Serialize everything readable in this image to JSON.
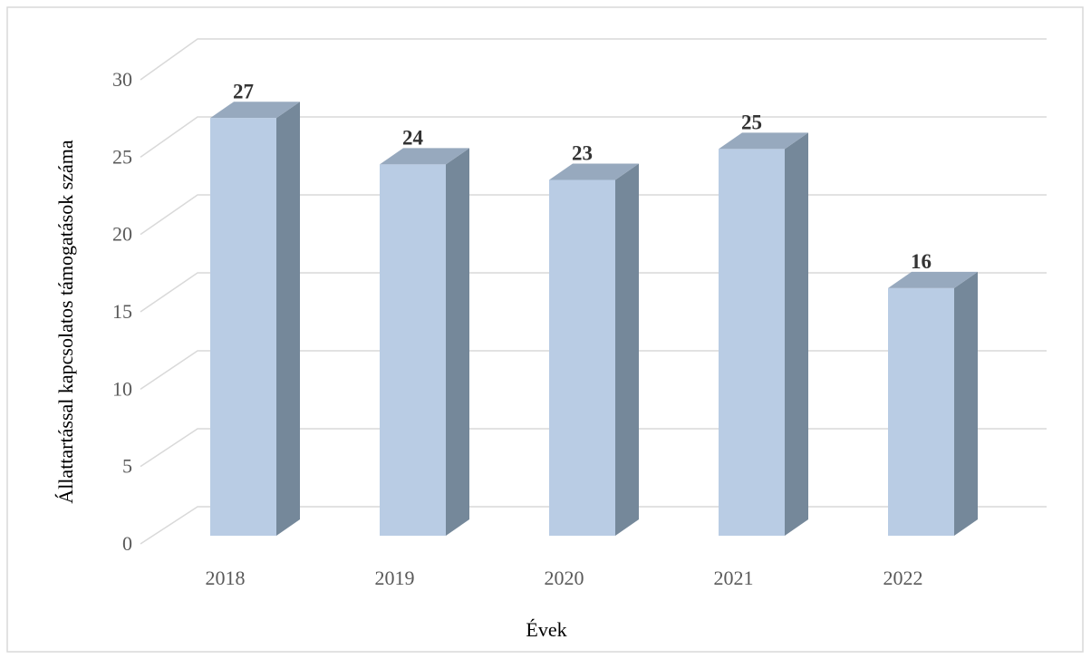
{
  "chart_data": {
    "type": "bar3d",
    "y_label": "Állattartással kapcsolatos támogatások száma",
    "x_label": "Évek",
    "categories": [
      "2018",
      "2019",
      "2020",
      "2021",
      "2022"
    ],
    "values": [
      27,
      24,
      23,
      25,
      16
    ],
    "colors": {
      "front": "#b9cce4",
      "side": "#75889a",
      "top": "#97a9be"
    },
    "ylim": [
      0,
      30
    ],
    "yticks": [
      0,
      5,
      10,
      15,
      20,
      25,
      30
    ],
    "grid": true
  }
}
